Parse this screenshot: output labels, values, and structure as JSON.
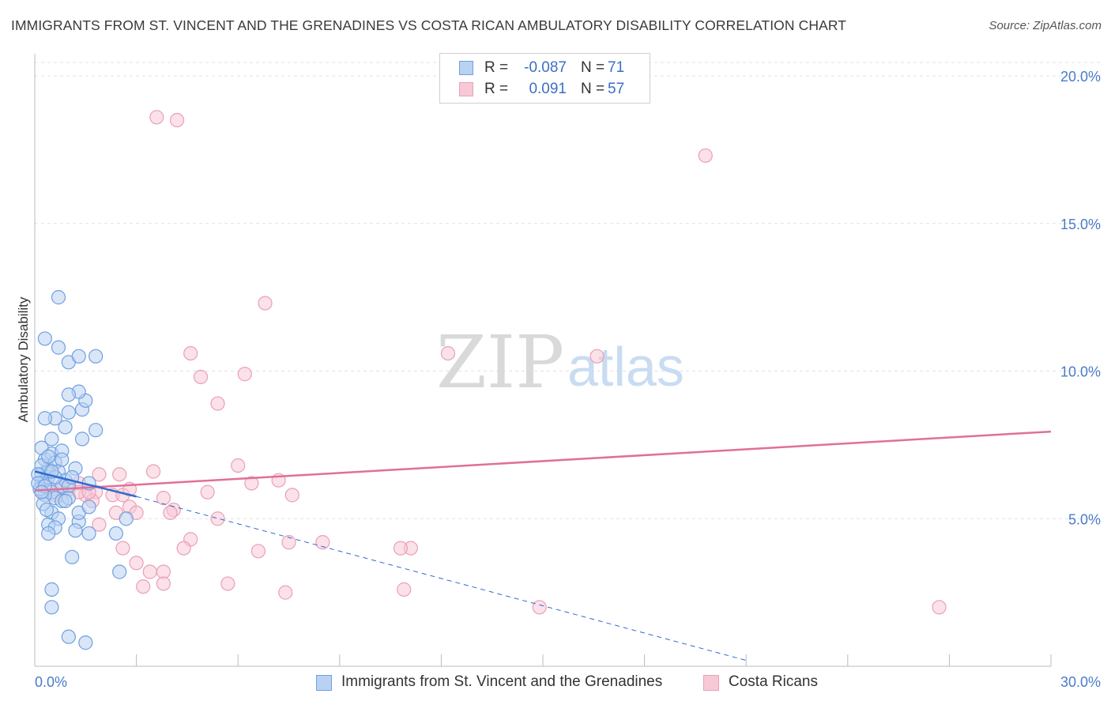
{
  "title": "IMMIGRANTS FROM ST. VINCENT AND THE GRENADINES VS COSTA RICAN AMBULATORY DISABILITY CORRELATION CHART",
  "source": "Source: ZipAtlas.com",
  "watermark": {
    "zip": "ZIP",
    "atlas": "atlas"
  },
  "colors": {
    "blue": "#6fa0e0",
    "blue_fill": "#b9d1f3",
    "blue_line": "#2e6ccf",
    "pink": "#e9a0b8",
    "pink_fill": "#f7c9d6",
    "pink_line": "#e07097",
    "grid": "#e2e2e2",
    "axis_text": "#4a7bc8"
  },
  "legend": {
    "rows": [
      {
        "r_label": "R =",
        "r_value": "-0.087",
        "n_label": "N =",
        "n_value": "71"
      },
      {
        "r_label": "R =",
        "r_value": "0.091",
        "n_label": "N =",
        "n_value": "57"
      }
    ]
  },
  "bottom_legend": {
    "series1": "Immigrants from St. Vincent and the Grenadines",
    "series2": "Costa Ricans"
  },
  "chart_data": {
    "type": "scatter",
    "title": "IMMIGRANTS FROM ST. VINCENT AND THE GRENADINES VS COSTA RICAN AMBULATORY DISABILITY CORRELATION CHART",
    "xlabel": "",
    "ylabel": "Ambulatory Disability",
    "xlim": [
      0,
      30
    ],
    "ylim": [
      0,
      20
    ],
    "x_tick_labels": [
      "0.0%",
      "30.0%"
    ],
    "y_ticks": [
      5,
      10,
      15,
      20
    ],
    "y_tick_labels": [
      "5.0%",
      "10.0%",
      "15.0%",
      "20.0%"
    ],
    "series": [
      {
        "name": "Immigrants from St. Vincent and the Grenadines",
        "r": -0.087,
        "n": 71,
        "trend_solid": {
          "x": [
            0.0,
            3.0
          ],
          "y": [
            6.6,
            5.75
          ]
        },
        "trend_dashed": {
          "x": [
            3.0,
            21.0
          ],
          "y": [
            5.75,
            0.2
          ]
        },
        "points": [
          [
            0.2,
            6.5
          ],
          [
            0.3,
            6.3
          ],
          [
            0.2,
            6.2
          ],
          [
            0.4,
            6.7
          ],
          [
            0.3,
            7.0
          ],
          [
            0.5,
            7.2
          ],
          [
            0.6,
            6.9
          ],
          [
            0.4,
            6.4
          ],
          [
            0.7,
            6.6
          ],
          [
            0.8,
            6.1
          ],
          [
            0.5,
            5.9
          ],
          [
            0.6,
            5.7
          ],
          [
            0.3,
            5.8
          ],
          [
            0.9,
            6.3
          ],
          [
            1.0,
            6.1
          ],
          [
            0.2,
            7.4
          ],
          [
            0.5,
            7.7
          ],
          [
            0.8,
            7.3
          ],
          [
            0.9,
            8.1
          ],
          [
            0.6,
            8.4
          ],
          [
            0.3,
            8.4
          ],
          [
            1.0,
            8.6
          ],
          [
            1.4,
            8.7
          ],
          [
            1.5,
            9.0
          ],
          [
            1.3,
            9.3
          ],
          [
            1.0,
            9.2
          ],
          [
            0.7,
            10.8
          ],
          [
            1.0,
            10.3
          ],
          [
            1.3,
            10.5
          ],
          [
            1.8,
            10.5
          ],
          [
            0.3,
            11.1
          ],
          [
            0.7,
            12.5
          ],
          [
            1.2,
            6.7
          ],
          [
            1.6,
            6.2
          ],
          [
            1.4,
            7.7
          ],
          [
            1.8,
            8.0
          ],
          [
            0.4,
            6.6
          ],
          [
            0.8,
            5.6
          ],
          [
            0.5,
            5.2
          ],
          [
            0.7,
            5.0
          ],
          [
            0.4,
            4.8
          ],
          [
            1.3,
            4.9
          ],
          [
            1.2,
            4.6
          ],
          [
            0.6,
            4.7
          ],
          [
            1.6,
            4.5
          ],
          [
            0.4,
            4.5
          ],
          [
            1.3,
            5.2
          ],
          [
            1.6,
            5.4
          ],
          [
            2.4,
            4.5
          ],
          [
            2.7,
            5.0
          ],
          [
            1.1,
            3.7
          ],
          [
            2.5,
            3.2
          ],
          [
            0.5,
            2.6
          ],
          [
            0.5,
            2.0
          ],
          [
            1.0,
            1.0
          ],
          [
            1.5,
            0.8
          ],
          [
            0.2,
            6.8
          ],
          [
            0.15,
            6.0
          ],
          [
            0.25,
            5.5
          ],
          [
            0.35,
            5.3
          ],
          [
            1.0,
            5.7
          ],
          [
            0.9,
            5.6
          ],
          [
            0.1,
            6.5
          ],
          [
            0.1,
            6.2
          ],
          [
            0.6,
            6.4
          ],
          [
            0.3,
            6.1
          ],
          [
            0.2,
            5.9
          ],
          [
            1.1,
            6.4
          ],
          [
            0.5,
            6.6
          ],
          [
            0.8,
            7.0
          ],
          [
            0.4,
            7.1
          ]
        ]
      },
      {
        "name": "Costa Ricans",
        "r": 0.091,
        "n": 57,
        "trend": {
          "x": [
            0.0,
            30.0
          ],
          "y": [
            5.95,
            7.95
          ]
        },
        "points": [
          [
            3.6,
            18.6
          ],
          [
            4.2,
            18.5
          ],
          [
            19.8,
            17.3
          ],
          [
            6.8,
            12.3
          ],
          [
            4.6,
            10.6
          ],
          [
            12.2,
            10.6
          ],
          [
            16.6,
            10.5
          ],
          [
            4.9,
            9.8
          ],
          [
            6.2,
            9.9
          ],
          [
            5.4,
            8.9
          ],
          [
            6.0,
            6.8
          ],
          [
            3.5,
            6.6
          ],
          [
            2.5,
            6.5
          ],
          [
            1.9,
            6.5
          ],
          [
            1.8,
            5.9
          ],
          [
            2.3,
            5.8
          ],
          [
            1.3,
            6.2
          ],
          [
            1.0,
            6.0
          ],
          [
            1.5,
            5.8
          ],
          [
            0.5,
            6.0
          ],
          [
            0.8,
            6.1
          ],
          [
            7.2,
            6.3
          ],
          [
            6.4,
            6.2
          ],
          [
            5.1,
            5.9
          ],
          [
            7.6,
            5.8
          ],
          [
            2.6,
            5.8
          ],
          [
            2.8,
            5.4
          ],
          [
            3.8,
            5.7
          ],
          [
            2.4,
            5.2
          ],
          [
            3.0,
            5.2
          ],
          [
            4.1,
            5.3
          ],
          [
            4.0,
            5.2
          ],
          [
            5.4,
            5.0
          ],
          [
            1.9,
            4.8
          ],
          [
            1.7,
            5.6
          ],
          [
            2.6,
            4.0
          ],
          [
            4.6,
            4.3
          ],
          [
            4.4,
            4.0
          ],
          [
            7.5,
            4.2
          ],
          [
            8.5,
            4.2
          ],
          [
            11.1,
            4.0
          ],
          [
            10.8,
            4.0
          ],
          [
            6.6,
            3.9
          ],
          [
            3.0,
            3.5
          ],
          [
            3.4,
            3.2
          ],
          [
            3.8,
            3.2
          ],
          [
            3.2,
            2.7
          ],
          [
            3.8,
            2.8
          ],
          [
            5.7,
            2.8
          ],
          [
            7.4,
            2.5
          ],
          [
            10.9,
            2.6
          ],
          [
            14.9,
            2.0
          ],
          [
            26.7,
            2.0
          ],
          [
            1.3,
            5.9
          ],
          [
            2.8,
            6.0
          ],
          [
            0.6,
            5.8
          ],
          [
            1.6,
            5.9
          ]
        ]
      }
    ]
  }
}
